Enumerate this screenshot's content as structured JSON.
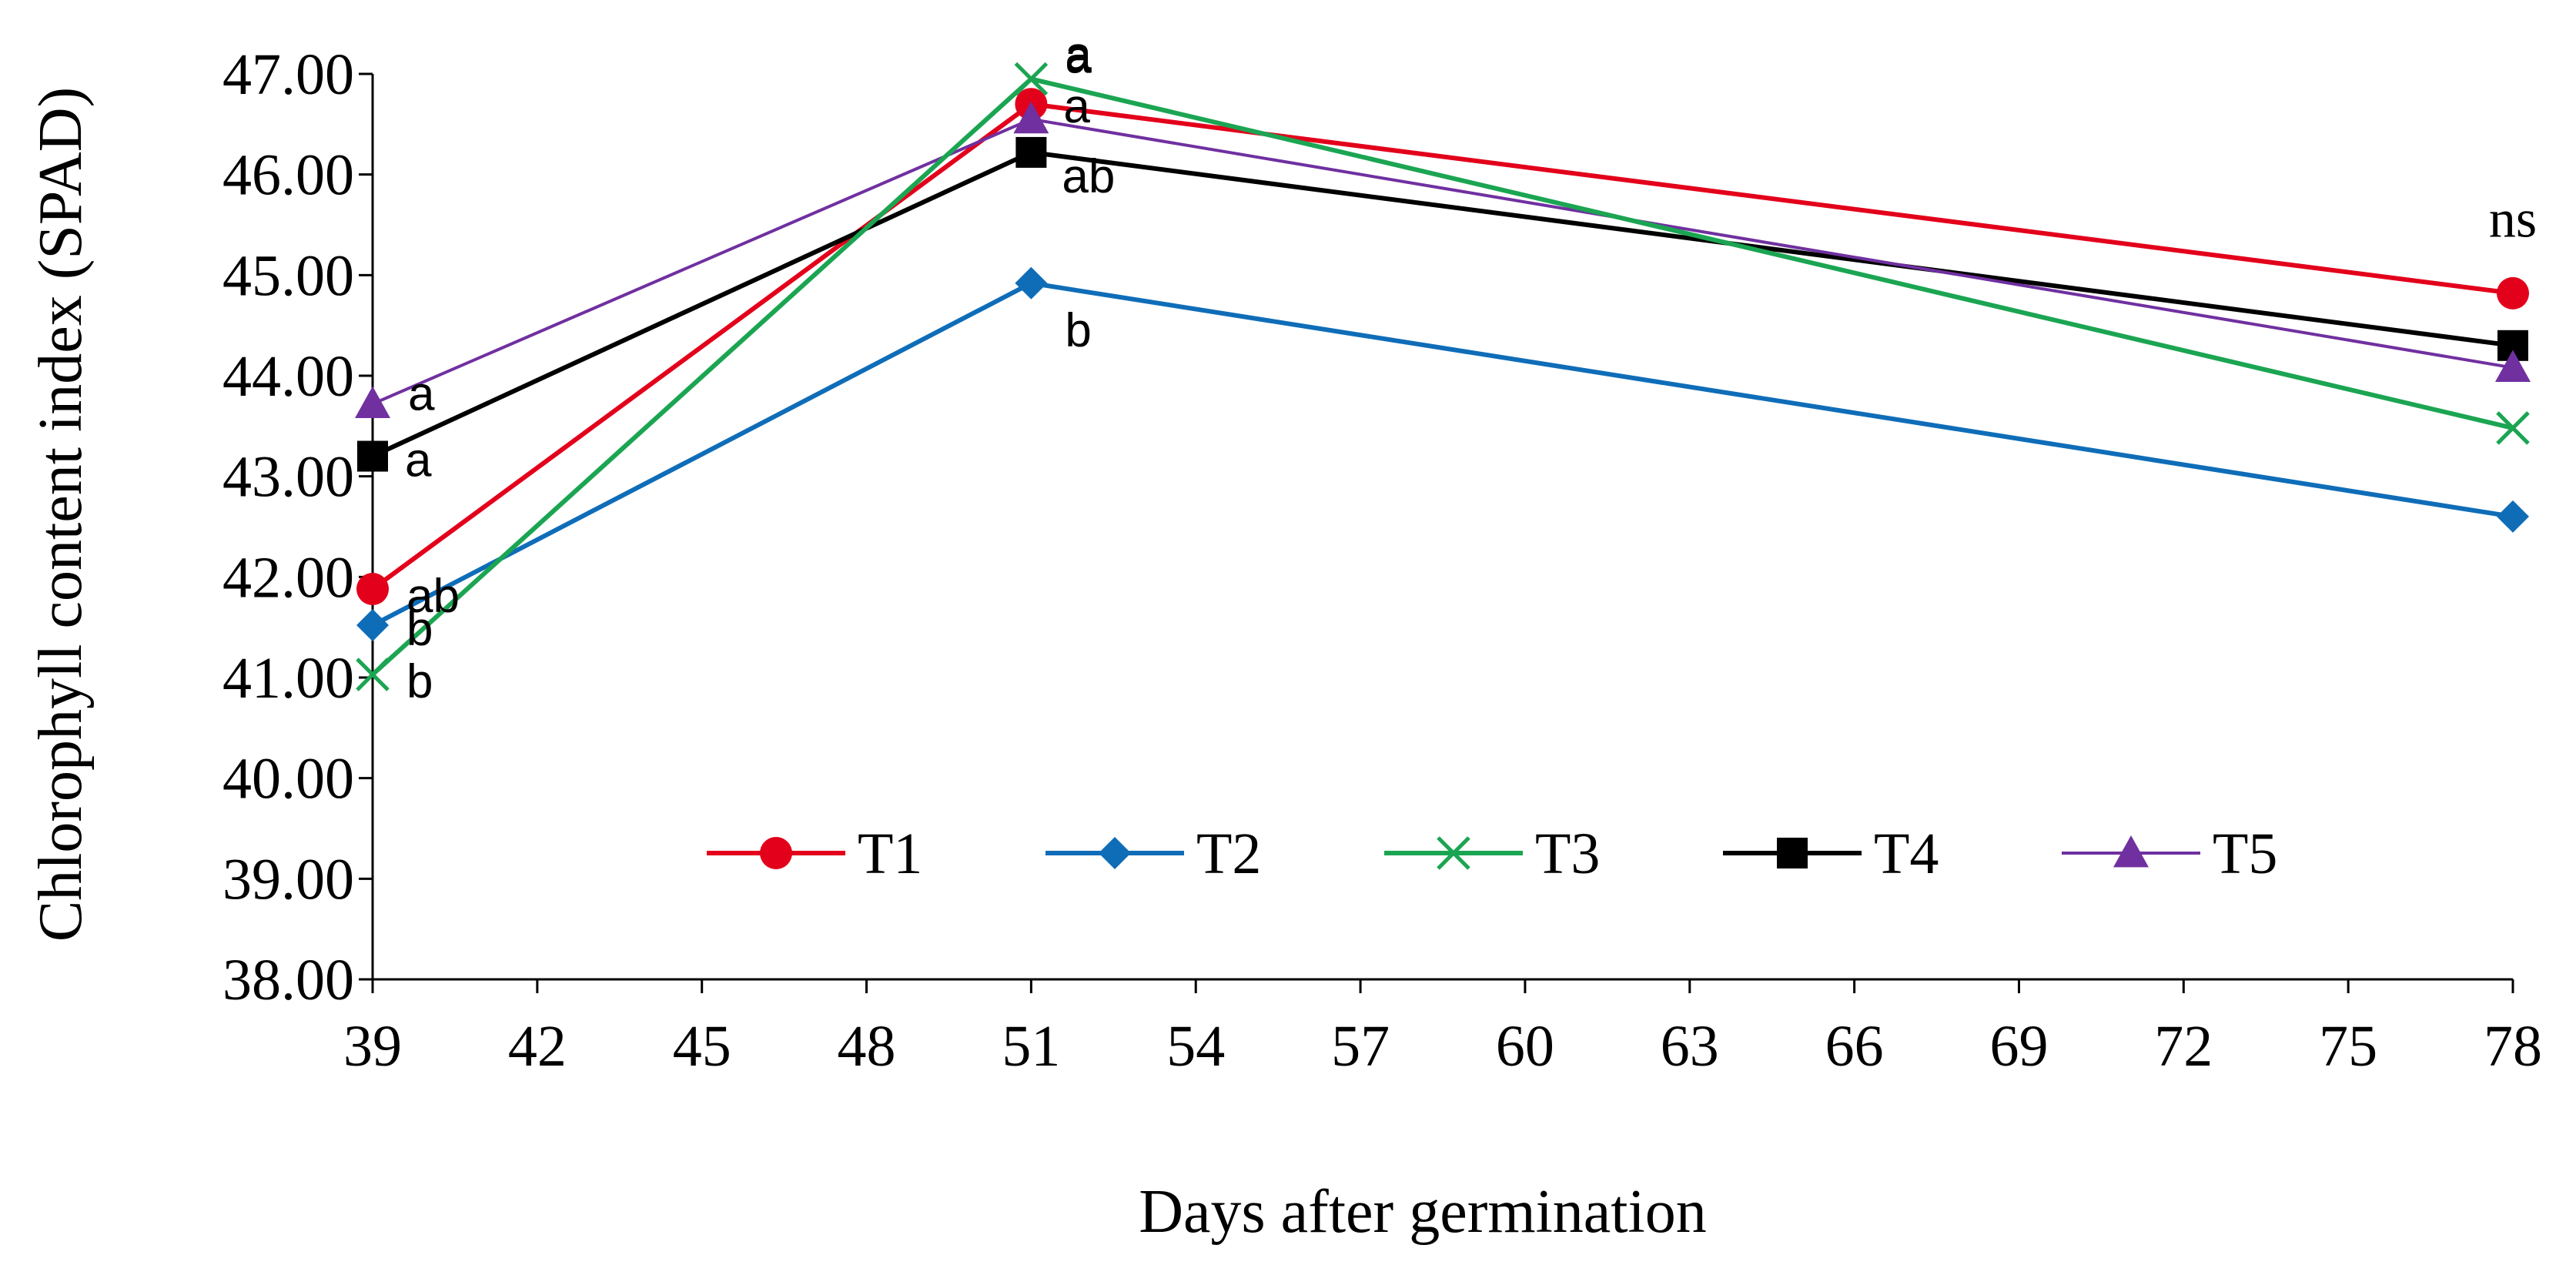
{
  "chart_data": {
    "type": "line",
    "title": "",
    "xlabel": "Days after germination",
    "ylabel": "Chlorophyll content index (SPAD)",
    "xlim": [
      39,
      78
    ],
    "ylim": [
      38,
      47
    ],
    "x_ticks": [
      "39",
      "42",
      "45",
      "48",
      "51",
      "54",
      "57",
      "60",
      "63",
      "66",
      "69",
      "72",
      "75",
      "78"
    ],
    "y_ticks": [
      "38.00",
      "39.00",
      "40.00",
      "41.00",
      "42.00",
      "43.00",
      "44.00",
      "45.00",
      "46.00",
      "47.00"
    ],
    "grid": false,
    "legend_position": "inside-bottom-center",
    "x": [
      39,
      51,
      78
    ],
    "series": [
      {
        "name": "T1",
        "color": "#E3001B",
        "marker": "circle",
        "values": [
          41.88,
          46.7,
          44.82
        ],
        "letters": [
          "ab",
          "a",
          ""
        ]
      },
      {
        "name": "T2",
        "color": "#0F6DB8",
        "marker": "diamond",
        "values": [
          41.52,
          44.92,
          42.6
        ],
        "letters": [
          "b",
          "b",
          ""
        ]
      },
      {
        "name": "T3",
        "color": "#1BA552",
        "marker": "x",
        "values": [
          41.03,
          46.95,
          43.48
        ],
        "letters": [
          "b",
          "a",
          ""
        ]
      },
      {
        "name": "T4",
        "color": "#000000",
        "marker": "square",
        "values": [
          43.2,
          46.22,
          44.3
        ],
        "letters": [
          "a",
          "ab",
          ""
        ]
      },
      {
        "name": "T5",
        "color": "#7030A0",
        "marker": "triangle",
        "values": [
          43.72,
          46.55,
          44.08
        ],
        "letters": [
          "a",
          "a",
          ""
        ]
      }
    ],
    "annotations": [
      {
        "text": "ns",
        "x": 78
      }
    ]
  }
}
